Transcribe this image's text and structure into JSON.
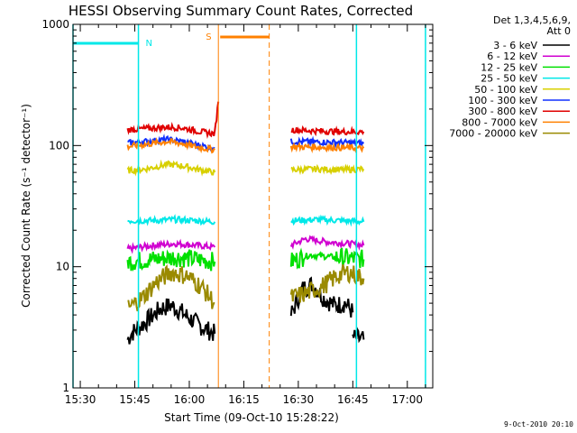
{
  "chart_data": {
    "type": "line",
    "title": "HESSI Observing Summary Count Rates, Corrected",
    "xlabel": "Start Time (09-Oct-10 15:28:22)",
    "ylabel": "Corrected Count Rate (s⁻¹ detector⁻¹)",
    "yscale": "log",
    "xlim": [
      "15:28",
      "17:07"
    ],
    "ylim": [
      1,
      1000
    ],
    "x_ticks": [
      "15:30",
      "15:45",
      "16:00",
      "16:15",
      "16:30",
      "16:45",
      "17:00"
    ],
    "y_ticks": [
      "1",
      "10",
      "100",
      "1000"
    ],
    "legend": {
      "header1": "Det 1,3,4,5,6,9,",
      "header2": "Att 0",
      "placement": "right-outside"
    },
    "series": [
      {
        "name": "3 - 6 keV",
        "color": "#000000",
        "segments": [
          [
            [
              "15:43",
              2.5
            ],
            [
              "15:44",
              2.8
            ],
            [
              "15:48",
              3.5
            ],
            [
              "15:52",
              4.5
            ],
            [
              "15:55",
              4.8
            ],
            [
              "15:58",
              4.2
            ],
            [
              "16:02",
              3.4
            ],
            [
              "16:05",
              3.0
            ],
            [
              "16:07",
              2.8
            ]
          ],
          [
            [
              "16:28",
              4.0
            ],
            [
              "16:31",
              6.5
            ],
            [
              "16:34",
              7.2
            ],
            [
              "16:37",
              5.5
            ],
            [
              "16:40",
              4.8
            ],
            [
              "16:43",
              5.0
            ],
            [
              "16:45",
              4.2
            ]
          ],
          [
            [
              "16:45",
              2.6
            ],
            [
              "16:48",
              2.5
            ]
          ]
        ]
      },
      {
        "name": "6 - 12 keV",
        "color": "#d000d0",
        "segments": [
          [
            [
              "15:43",
              14
            ],
            [
              "15:50",
              15
            ],
            [
              "15:56",
              15.5
            ],
            [
              "16:02",
              15
            ],
            [
              "16:07",
              14.5
            ]
          ],
          [
            [
              "16:28",
              15
            ],
            [
              "16:32",
              17
            ],
            [
              "16:38",
              16
            ],
            [
              "16:44",
              15.5
            ],
            [
              "16:48",
              15
            ]
          ]
        ]
      },
      {
        "name": "12 - 25 keV",
        "color": "#00e000",
        "segments": [
          [
            [
              "15:43",
              11
            ],
            [
              "15:50",
              11.5
            ],
            [
              "15:56",
              12
            ],
            [
              "16:02",
              11.5
            ],
            [
              "16:07",
              11
            ]
          ],
          [
            [
              "16:28",
              11
            ],
            [
              "16:33",
              12.5
            ],
            [
              "16:40",
              12
            ],
            [
              "16:48",
              11.5
            ]
          ]
        ]
      },
      {
        "name": "25 - 50 keV",
        "color": "#00e8e8",
        "segments": [
          [
            [
              "15:43",
              24
            ],
            [
              "15:50",
              24
            ],
            [
              "15:56",
              24.5
            ],
            [
              "16:02",
              24
            ],
            [
              "16:07",
              23.5
            ]
          ],
          [
            [
              "16:28",
              24
            ],
            [
              "16:35",
              24.5
            ],
            [
              "16:42",
              24
            ],
            [
              "16:48",
              23.5
            ]
          ]
        ]
      },
      {
        "name": "50 - 100 keV",
        "color": "#d8d000",
        "segments": [
          [
            [
              "15:43",
              62
            ],
            [
              "15:48",
              64
            ],
            [
              "15:54",
              70
            ],
            [
              "15:58",
              68
            ],
            [
              "16:03",
              63
            ],
            [
              "16:07",
              60
            ]
          ],
          [
            [
              "16:28",
              63
            ],
            [
              "16:35",
              64
            ],
            [
              "16:42",
              63
            ],
            [
              "16:48",
              64
            ]
          ]
        ]
      },
      {
        "name": "100 - 300 keV",
        "color": "#1030ff",
        "segments": [
          [
            [
              "15:43",
              105
            ],
            [
              "15:48",
              108
            ],
            [
              "15:54",
              112
            ],
            [
              "15:58",
              108
            ],
            [
              "16:03",
              100
            ],
            [
              "16:07",
              95
            ]
          ],
          [
            [
              "16:28",
              108
            ],
            [
              "16:35",
              107
            ],
            [
              "16:42",
              106
            ],
            [
              "16:48",
              104
            ]
          ]
        ]
      },
      {
        "name": "300 - 800 keV",
        "color": "#e00000",
        "segments": [
          [
            [
              "15:43",
              135
            ],
            [
              "15:48",
              138
            ],
            [
              "15:54",
              142
            ],
            [
              "15:58",
              140
            ],
            [
              "16:03",
              130
            ],
            [
              "16:07",
              125
            ],
            [
              "16:08",
              230
            ]
          ],
          [
            [
              "16:28",
              135
            ],
            [
              "16:35",
              132
            ],
            [
              "16:42",
              130
            ],
            [
              "16:48",
              130
            ]
          ]
        ]
      },
      {
        "name": "800 - 7000 keV",
        "color": "#ff8000",
        "segments": [
          [
            [
              "15:43",
              98
            ],
            [
              "15:48",
              102
            ],
            [
              "15:54",
              108
            ],
            [
              "15:58",
              104
            ],
            [
              "16:03",
              96
            ],
            [
              "16:07",
              92
            ]
          ],
          [
            [
              "16:28",
              98
            ],
            [
              "16:35",
              97
            ],
            [
              "16:42",
              96
            ],
            [
              "16:48",
              95
            ]
          ]
        ]
      },
      {
        "name": "7000 - 20000 keV",
        "color": "#9a8a00",
        "segments": [
          [
            [
              "15:43",
              4.5
            ],
            [
              "15:47",
              5.5
            ],
            [
              "15:51",
              7.5
            ],
            [
              "15:55",
              9.0
            ],
            [
              "15:59",
              8.5
            ],
            [
              "16:03",
              7.0
            ],
            [
              "16:07",
              5.0
            ]
          ],
          [
            [
              "16:28",
              5.5
            ],
            [
              "16:32",
              6.0
            ],
            [
              "16:37",
              7.0
            ],
            [
              "16:41",
              8.5
            ],
            [
              "16:44",
              9.0
            ],
            [
              "16:48",
              8.0
            ]
          ]
        ]
      }
    ],
    "annotations": [
      {
        "label": "N",
        "color": "#00e8e8",
        "times": [
          "15:46",
          "17:05"
        ],
        "markers": [
          "15:28",
          "15:46",
          "16:46",
          "17:05"
        ]
      },
      {
        "label": "S",
        "color": "#ff8000",
        "times": [
          "16:08",
          "16:22"
        ]
      }
    ],
    "timestamp": "9-Oct-2010 20:10"
  }
}
